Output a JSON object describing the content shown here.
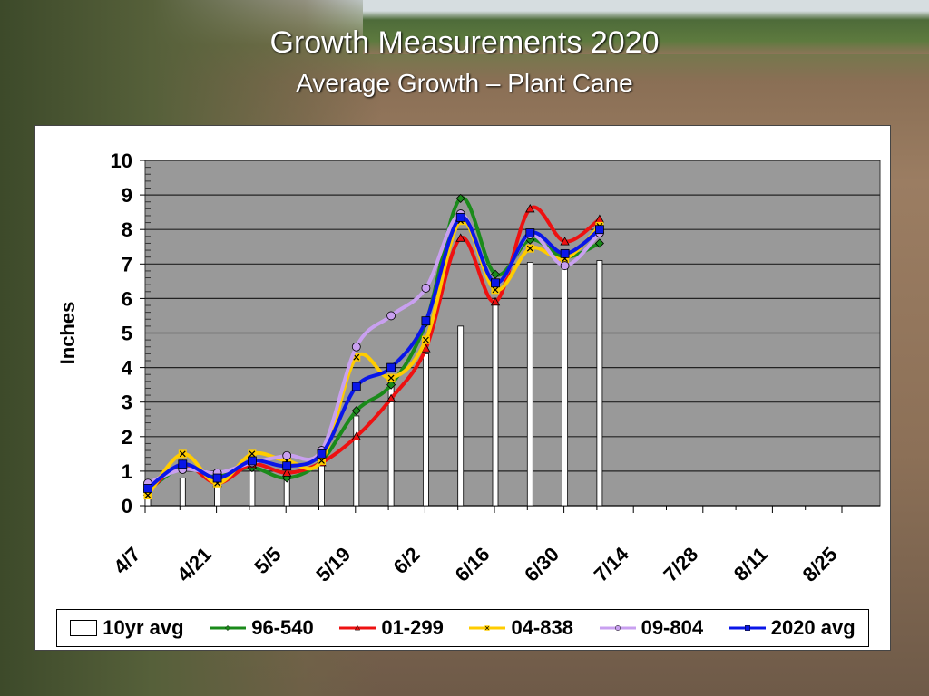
{
  "slide": {
    "title": "Growth Measurements 2020",
    "subtitle": "Average Growth – Plant Cane"
  },
  "chart_data": {
    "type": "bar+line",
    "ylabel": "Inches",
    "ylim": [
      0,
      10
    ],
    "yticks": [
      "0",
      "1",
      "2",
      "3",
      "4",
      "5",
      "6",
      "7",
      "8",
      "9",
      "10"
    ],
    "x_tick_labels": [
      "4/7",
      "4/21",
      "5/5",
      "5/19",
      "6/2",
      "6/16",
      "6/30",
      "7/14",
      "7/28",
      "8/11",
      "8/25"
    ],
    "x_weeks_total": 21,
    "x": [
      "4/7",
      "4/14",
      "4/21",
      "4/28",
      "5/5",
      "5/12",
      "5/19",
      "5/26",
      "6/2",
      "6/9",
      "6/16",
      "6/23",
      "6/30",
      "7/7"
    ],
    "grid": true,
    "legend_position": "bottom",
    "bar_series": {
      "name": "10yr avg",
      "color": "#ffffff",
      "values": [
        0.3,
        0.8,
        0.6,
        1.0,
        0.85,
        1.2,
        2.6,
        3.6,
        4.4,
        5.2,
        5.9,
        7.05,
        7.0,
        7.1
      ]
    },
    "series": [
      {
        "name": "96-540",
        "color": "#1a8a1a",
        "marker": "diamond",
        "values": [
          0.45,
          1.1,
          0.9,
          1.1,
          0.8,
          1.3,
          2.75,
          3.5,
          5.3,
          8.9,
          6.7,
          7.7,
          7.2,
          7.6
        ]
      },
      {
        "name": "01-299",
        "color": "#ee1111",
        "marker": "triangle",
        "values": [
          0.4,
          1.2,
          0.65,
          1.2,
          0.95,
          1.25,
          2.0,
          3.1,
          4.55,
          7.75,
          5.9,
          8.6,
          7.65,
          8.3
        ]
      },
      {
        "name": "04-838",
        "color": "#ffcc00",
        "marker": "x",
        "values": [
          0.3,
          1.5,
          0.65,
          1.5,
          1.3,
          1.3,
          4.3,
          3.7,
          4.8,
          8.25,
          6.25,
          7.45,
          7.15,
          8.1
        ]
      },
      {
        "name": "09-804",
        "color": "#c9a0f0",
        "marker": "circle",
        "values": [
          0.65,
          1.05,
          0.95,
          1.25,
          1.45,
          1.6,
          4.6,
          5.5,
          6.3,
          8.45,
          6.45,
          7.85,
          6.95,
          7.9
        ]
      },
      {
        "name": "2020 avg",
        "color": "#0a16e8",
        "marker": "square",
        "values": [
          0.5,
          1.2,
          0.8,
          1.3,
          1.15,
          1.5,
          3.45,
          4.0,
          5.35,
          8.35,
          6.45,
          7.9,
          7.3,
          8.0
        ]
      }
    ]
  }
}
